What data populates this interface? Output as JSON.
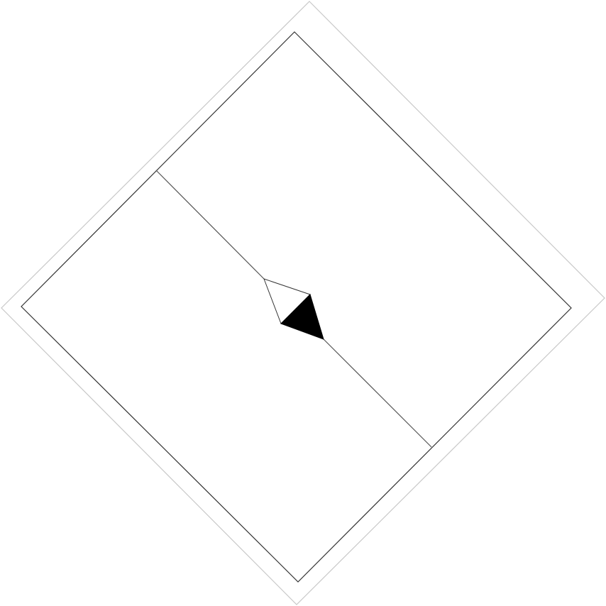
{
  "diagram": {
    "colors": {
      "background": "#ffffff",
      "outer_frame": "#c8c8c8",
      "inner_frame": "#333333",
      "divider": "#555555",
      "marker_fill": "#000000",
      "marker_outline": "#333333"
    },
    "shapes": [
      "outer-diamond-frame",
      "inner-diamond-frame",
      "diagonal-divider-line",
      "center-compass-marker"
    ]
  }
}
